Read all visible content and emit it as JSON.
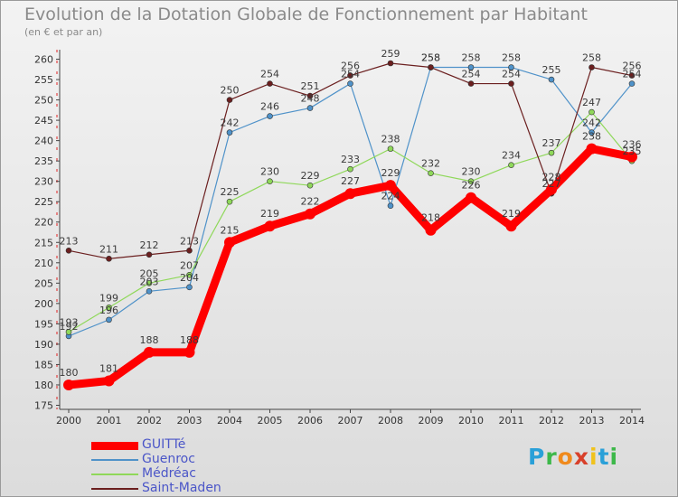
{
  "title": "Evolution de la Dotation Globale de Fonctionnement par Habitant",
  "subtitle": "(en € et par an)",
  "logo": {
    "text": "Proxiti",
    "letters": [
      "P",
      "r",
      "o",
      "x",
      "i",
      "t",
      "i"
    ],
    "colors": [
      "#2aa0d8",
      "#3db84a",
      "#f08a1c",
      "#d8402a",
      "#f0c21c",
      "#2aa0d8",
      "#3db84a"
    ]
  },
  "chart_data": {
    "type": "line",
    "title": "Evolution de la Dotation Globale de Fonctionnement par Habitant",
    "subtitle": "(en € et par an)",
    "xlabel": "",
    "ylabel": "",
    "x": [
      "2000",
      "2001",
      "2002",
      "2003",
      "2004",
      "2005",
      "2006",
      "2007",
      "2008",
      "2009",
      "2010",
      "2011",
      "2012",
      "2013",
      "2014"
    ],
    "yticks": [
      175,
      180,
      185,
      190,
      195,
      200,
      205,
      210,
      215,
      220,
      225,
      230,
      235,
      240,
      245,
      250,
      255,
      260
    ],
    "ylim": [
      174,
      261
    ],
    "grid": false,
    "legend_position": "bottom-left",
    "series": [
      {
        "name": "GUITTé",
        "color": "#ff0000",
        "values": [
          180,
          181,
          188,
          188,
          215,
          219,
          222,
          227,
          229,
          218,
          226,
          219,
          228,
          238,
          236
        ]
      },
      {
        "name": "Guenroc",
        "color": "#4f92c9",
        "values": [
          192,
          196,
          203,
          204,
          242,
          246,
          248,
          254,
          224,
          258,
          258,
          258,
          255,
          242,
          254
        ]
      },
      {
        "name": "Médréac",
        "color": "#8fd85a",
        "values": [
          193,
          199,
          205,
          207,
          225,
          230,
          229,
          233,
          238,
          232,
          230,
          234,
          237,
          247,
          235
        ]
      },
      {
        "name": "Saint-Maden",
        "color": "#6b1f1f",
        "values": [
          213,
          211,
          212,
          213,
          250,
          254,
          251,
          256,
          259,
          258,
          254,
          254,
          227,
          258,
          256
        ]
      }
    ]
  }
}
